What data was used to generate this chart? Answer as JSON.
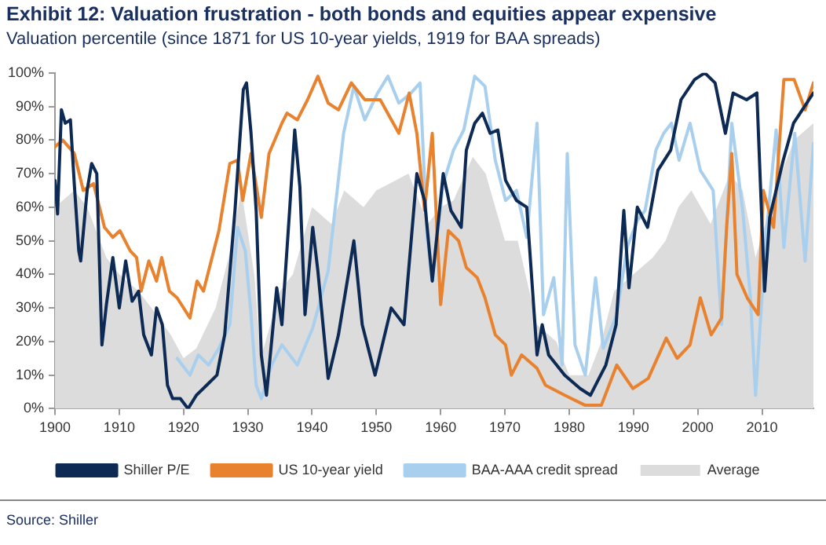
{
  "chart_data": {
    "type": "line",
    "title": "Exhibit 12: Valuation frustration - both bonds and equities appear expensive",
    "subtitle": "Valuation percentile (since 1871 for US 10-year yields, 1919 for BAA spreads)",
    "annotations": [
      "Source: Shiller"
    ],
    "xlim": [
      1900,
      2018
    ],
    "xticks": [
      1900,
      1910,
      1920,
      1930,
      1940,
      1950,
      1960,
      1970,
      1980,
      1990,
      2000,
      2010
    ],
    "ylim": [
      0,
      100
    ],
    "yticks": [
      {
        "value": 0,
        "label": "0%"
      },
      {
        "value": 10,
        "label": "10%"
      },
      {
        "value": 20,
        "label": "20%"
      },
      {
        "value": 30,
        "label": "30%"
      },
      {
        "value": 40,
        "label": "40%"
      },
      {
        "value": 50,
        "label": "50%"
      },
      {
        "value": 60,
        "label": "60%"
      },
      {
        "value": 70,
        "label": "70%"
      },
      {
        "value": 80,
        "label": "80%"
      },
      {
        "value": 90,
        "label": "90%"
      },
      {
        "value": 100,
        "label": "100%"
      }
    ],
    "grid": false,
    "legend": "bottom",
    "marker": "none",
    "line_style": "solid",
    "series": [
      {
        "name": "Average",
        "type": "area",
        "color": "#dcdcdc",
        "x": [
          1900,
          1903,
          1905,
          1908,
          1910,
          1913,
          1915,
          1918,
          1920,
          1922,
          1925,
          1927,
          1929,
          1931,
          1932,
          1935,
          1937,
          1940,
          1943,
          1945,
          1948,
          1950,
          1953,
          1955,
          1958,
          1960,
          1962,
          1965,
          1967,
          1970,
          1972,
          1975,
          1978,
          1980,
          1983,
          1985,
          1987,
          1990,
          1993,
          1995,
          1997,
          1999,
          2002,
          2005,
          2007,
          2009,
          2012,
          2015,
          2018
        ],
        "values": [
          60,
          65,
          60,
          45,
          40,
          35,
          30,
          22,
          15,
          18,
          30,
          45,
          65,
          40,
          15,
          35,
          40,
          60,
          55,
          65,
          60,
          65,
          68,
          70,
          55,
          60,
          62,
          75,
          70,
          50,
          50,
          25,
          20,
          10,
          10,
          20,
          35,
          40,
          45,
          50,
          60,
          65,
          55,
          70,
          65,
          45,
          65,
          80,
          85
        ]
      },
      {
        "name": "Shiller P/E",
        "color": "#0d2a55",
        "x": [
          1900,
          1900.4,
          1901,
          1901.6,
          1902.4,
          1903,
          1903.7,
          1904,
          1905,
          1905.7,
          1906.5,
          1907.3,
          1908,
          1909,
          1910,
          1911,
          1912,
          1913,
          1913.8,
          1915,
          1915.8,
          1916.7,
          1917.5,
          1918.3,
          1919.5,
          1920.7,
          1922,
          1923.6,
          1925.2,
          1926.4,
          1928,
          1929.3,
          1929.8,
          1930.5,
          1931.3,
          1932.1,
          1932.9,
          1934.5,
          1935.3,
          1936.5,
          1937.3,
          1938.1,
          1938.9,
          1940.1,
          1940.9,
          1942.5,
          1944.1,
          1946.5,
          1947.8,
          1949.8,
          1952.3,
          1954.3,
          1956.3,
          1957.5,
          1958.7,
          1960.4,
          1961.6,
          1963.2,
          1964,
          1965.3,
          1966.5,
          1967.7,
          1968.9,
          1970.1,
          1971.8,
          1973.4,
          1975,
          1975.8,
          1976.8,
          1979.3,
          1981.7,
          1983.3,
          1985.7,
          1987.3,
          1988.5,
          1989.3,
          1990.6,
          1992.2,
          1993.8,
          1995.8,
          1997.4,
          1999.5,
          2001.1,
          2002.7,
          2004.3,
          2005.5,
          2007.6,
          2009.2,
          2010.4,
          2011.2,
          2013.3,
          2014.9,
          2017.3,
          2018
        ],
        "values": [
          68,
          58,
          89,
          85,
          86,
          67,
          47,
          44,
          65,
          73,
          70,
          19,
          31,
          45,
          30,
          44,
          32,
          35,
          22,
          16,
          30,
          25,
          7,
          3,
          3,
          0,
          4,
          7,
          10,
          22,
          59,
          95,
          97,
          82,
          59,
          16,
          4,
          36,
          25,
          59,
          83,
          66,
          28,
          54,
          41,
          9,
          22,
          50,
          25,
          10,
          30,
          25,
          70,
          62,
          38,
          70,
          59,
          54,
          77,
          85,
          88,
          82,
          83,
          68,
          62,
          60,
          16,
          25,
          16,
          10,
          6,
          4,
          13,
          25,
          59,
          36,
          60,
          54,
          71,
          77,
          92,
          98,
          100,
          97,
          82,
          94,
          92,
          94,
          35,
          57,
          74,
          85,
          92,
          94
        ]
      },
      {
        "name": "US 10-year yield",
        "color": "#e8822e",
        "x": [
          1900,
          1901.2,
          1903,
          1904.4,
          1906,
          1907.7,
          1909,
          1910.1,
          1911.7,
          1912.7,
          1913.4,
          1914.6,
          1915.8,
          1916.6,
          1917.8,
          1919,
          1921,
          1922.1,
          1923.1,
          1925.5,
          1927.2,
          1928.4,
          1929.2,
          1930.5,
          1932.1,
          1933.3,
          1935.3,
          1936.1,
          1937.7,
          1939.3,
          1940.9,
          1942.5,
          1944.1,
          1946.1,
          1948.2,
          1950.6,
          1953.5,
          1955.1,
          1956.3,
          1957.5,
          1958.7,
          1960,
          1961.2,
          1962.8,
          1964,
          1965.7,
          1966.9,
          1968.5,
          1970.1,
          1971,
          1972.6,
          1975,
          1976.3,
          1979.3,
          1982.5,
          1985,
          1987.4,
          1989.9,
          1992.3,
          1995.1,
          1996.8,
          1998.8,
          2000.4,
          2002.1,
          2003.7,
          2004.5,
          2005.3,
          2006.1,
          2007.7,
          2009.4,
          2010.2,
          2011.8,
          2013.4,
          2015,
          2016.7,
          2018
        ],
        "values": [
          78,
          80,
          76,
          65,
          67,
          54,
          51,
          53,
          47,
          45,
          35,
          44,
          38,
          45,
          35,
          33,
          27,
          38,
          35,
          53,
          73,
          74,
          62,
          76,
          57,
          76,
          85,
          88,
          86,
          92,
          99,
          91,
          89,
          97,
          92,
          92,
          82,
          94,
          82,
          59,
          82,
          31,
          53,
          50,
          42,
          39,
          33,
          22,
          19,
          10,
          16,
          12,
          7,
          4,
          1,
          1,
          13,
          6,
          9,
          21,
          15,
          19,
          33,
          22,
          27,
          54,
          76,
          40,
          33,
          28,
          65,
          54,
          98,
          98,
          89,
          97
        ]
      },
      {
        "name": "BAA-AAA credit spread",
        "color": "#a9cfee",
        "x": [
          1919,
          1921,
          1922.3,
          1923.9,
          1925.5,
          1927.2,
          1928.4,
          1929.6,
          1930.5,
          1931.3,
          1932.1,
          1933.7,
          1935.3,
          1937.7,
          1940.1,
          1942.5,
          1944.9,
          1946.5,
          1948.2,
          1950.2,
          1951.8,
          1953.5,
          1955.4,
          1956.8,
          1957.9,
          1958.7,
          1960.4,
          1962,
          1963.6,
          1965.3,
          1966.9,
          1968.5,
          1970.1,
          1971.8,
          1973.4,
          1975,
          1976,
          1977.6,
          1978.9,
          1979.7,
          1980.9,
          1982.5,
          1984.1,
          1985.3,
          1987.4,
          1989,
          1990.6,
          1991.8,
          1993.5,
          1994.7,
          1995.9,
          1997.1,
          1998.8,
          2000.4,
          2002.4,
          2003.7,
          2005.3,
          2007,
          2008.2,
          2009,
          2010.6,
          2012.2,
          2013.4,
          2015.1,
          2016.7,
          2018
        ],
        "values": [
          15,
          10,
          16,
          13,
          18,
          25,
          54,
          47,
          28,
          7,
          3,
          13,
          19,
          13,
          24,
          41,
          82,
          96,
          86,
          94,
          99,
          91,
          94,
          97,
          51,
          38,
          67,
          77,
          83,
          99,
          96,
          74,
          62,
          65,
          51,
          85,
          28,
          39,
          13,
          76,
          19,
          10,
          39,
          18,
          28,
          48,
          56,
          59,
          77,
          82,
          85,
          74,
          85,
          71,
          65,
          25,
          85,
          59,
          33,
          4,
          51,
          83,
          48,
          82,
          44,
          79
        ]
      }
    ]
  }
}
